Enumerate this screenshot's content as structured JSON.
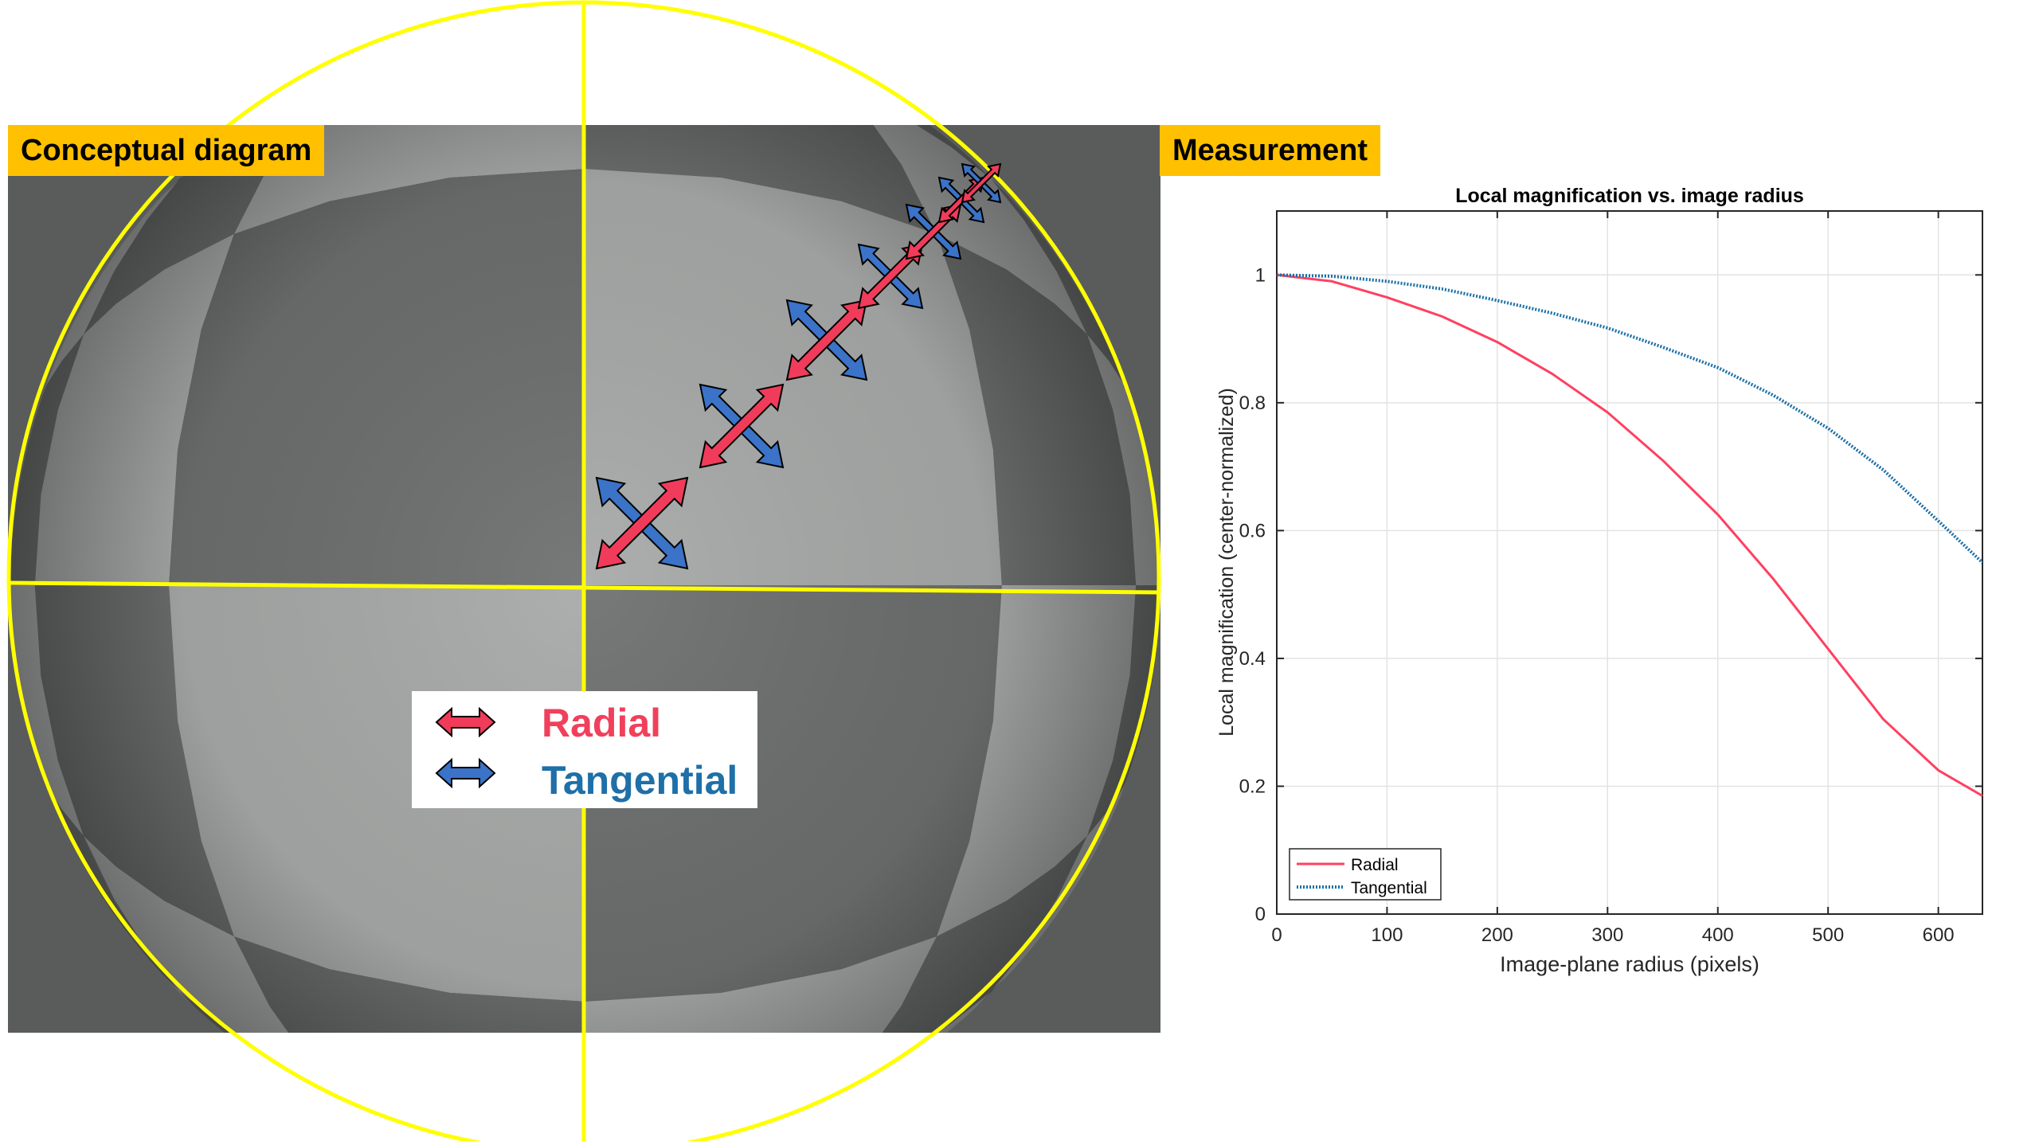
{
  "labels": {
    "left_panel": "Conceptual diagram",
    "right_panel": "Measurement"
  },
  "diagram_legend": {
    "radial": "Radial",
    "tangential": "Tangential"
  },
  "colors": {
    "radial": "#f03c5a",
    "tangential": "#1f6fb4",
    "guide_circle": "#ffff00",
    "tag_background": "#ffc000",
    "legend_radial_text": "#f0405c",
    "legend_tangential_text": "#1f6fa8"
  },
  "chart_data": {
    "type": "line",
    "title": "Local magnification vs. image radius",
    "xlabel": "Image-plane radius (pixels)",
    "ylabel": "Local magnification (center-normalized)",
    "xlim": [
      0,
      640
    ],
    "ylim": [
      0,
      1.1
    ],
    "x_ticks": [
      0,
      100,
      200,
      300,
      400,
      500,
      600
    ],
    "y_ticks": [
      0,
      0.2,
      0.4,
      0.6,
      0.8,
      1
    ],
    "grid": true,
    "legend_position": "bottom-left",
    "series": [
      {
        "name": "Radial",
        "style": "solid",
        "color": "#ff4060",
        "x": [
          0,
          50,
          100,
          150,
          200,
          250,
          300,
          350,
          400,
          450,
          500,
          550,
          600,
          640
        ],
        "y": [
          1.0,
          0.99,
          0.965,
          0.935,
          0.895,
          0.845,
          0.785,
          0.71,
          0.625,
          0.525,
          0.415,
          0.305,
          0.225,
          0.185
        ]
      },
      {
        "name": "Tangential",
        "style": "dotted",
        "color": "#1a6fa8",
        "x": [
          0,
          50,
          100,
          150,
          200,
          250,
          300,
          350,
          400,
          450,
          500,
          550,
          600,
          640
        ],
        "y": [
          1.0,
          0.998,
          0.99,
          0.978,
          0.96,
          0.94,
          0.917,
          0.887,
          0.855,
          0.812,
          0.76,
          0.695,
          0.615,
          0.55
        ]
      }
    ]
  }
}
